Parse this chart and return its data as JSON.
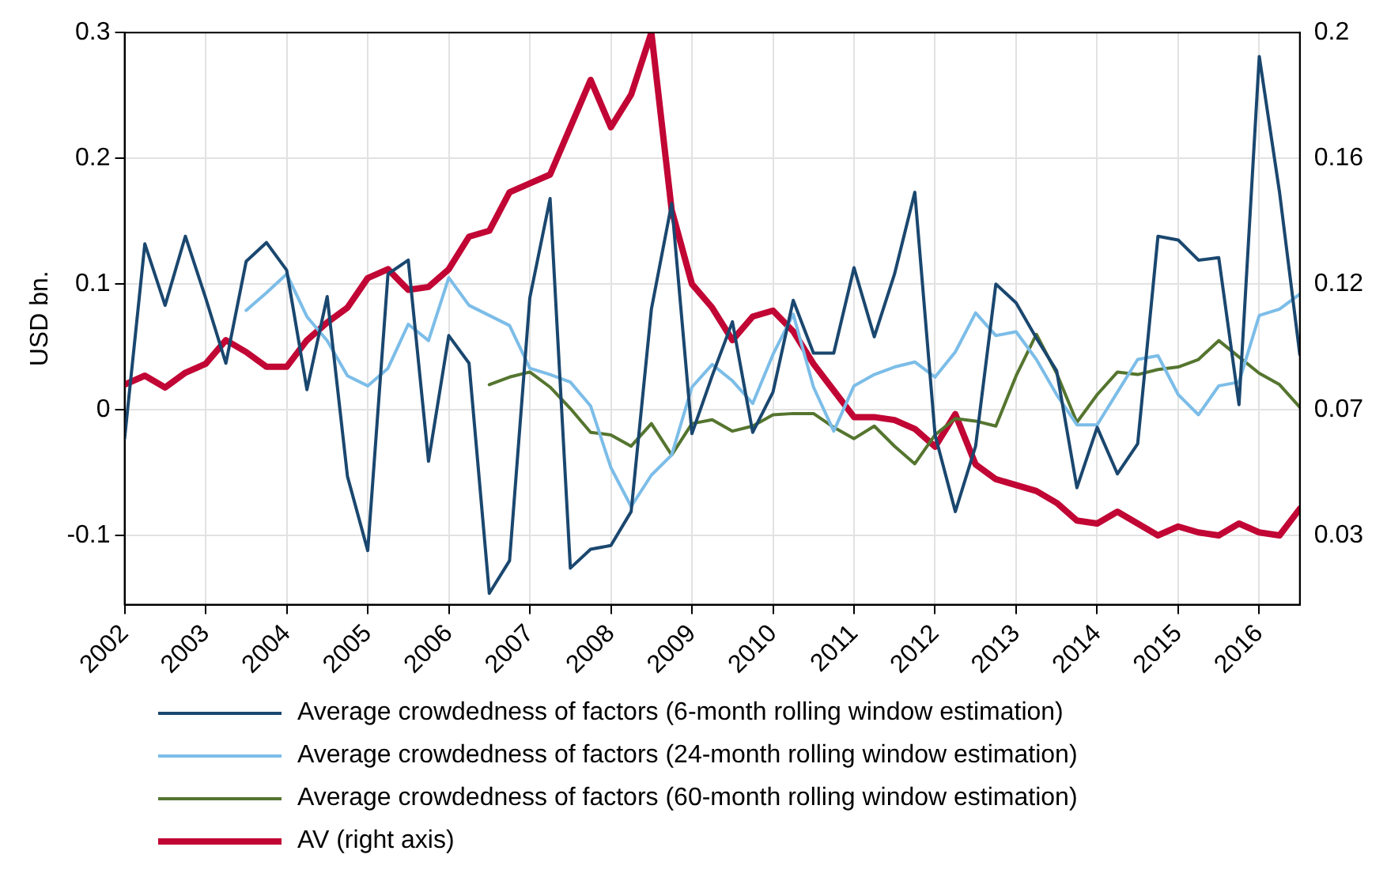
{
  "chart_data": {
    "type": "line",
    "ylabel": "USD bn.",
    "x": [
      2002,
      2002.25,
      2002.5,
      2002.75,
      2003,
      2003.25,
      2003.5,
      2003.75,
      2004,
      2004.25,
      2004.5,
      2004.75,
      2005,
      2005.25,
      2005.5,
      2005.75,
      2006,
      2006.25,
      2006.5,
      2006.75,
      2007,
      2007.25,
      2007.5,
      2007.75,
      2008,
      2008.25,
      2008.5,
      2008.75,
      2009,
      2009.25,
      2009.5,
      2009.75,
      2010,
      2010.25,
      2010.5,
      2010.75,
      2011,
      2011.25,
      2011.5,
      2011.75,
      2012,
      2012.25,
      2012.5,
      2012.75,
      2013,
      2013.25,
      2013.5,
      2013.75,
      2014,
      2014.25,
      2014.5,
      2014.75,
      2015,
      2015.25,
      2015.5,
      2015.75,
      2016,
      2016.25,
      2016.5
    ],
    "series": [
      {
        "name": "Average crowdedness of factors (6-month rolling window estimation)",
        "color": "#1a476f",
        "values": [
          -0.023,
          0.132,
          0.083,
          0.138,
          0.089,
          0.037,
          0.118,
          0.133,
          0.111,
          0.016,
          0.09,
          -0.053,
          -0.112,
          0.108,
          0.119,
          -0.041,
          0.059,
          0.037,
          -0.146,
          -0.12,
          0.089,
          0.168,
          -0.126,
          -0.111,
          -0.108,
          -0.081,
          0.08,
          0.164,
          -0.019,
          0.027,
          0.07,
          -0.018,
          0.014,
          0.087,
          0.045,
          0.045,
          0.113,
          0.058,
          0.108,
          0.173,
          -0.02,
          -0.081,
          -0.029,
          0.1,
          0.085,
          0.057,
          0.031,
          -0.062,
          -0.014,
          -0.051,
          -0.027,
          0.138,
          0.135,
          0.119,
          0.121,
          0.004,
          0.281,
          0.173,
          0.044
        ]
      },
      {
        "name": "Average crowdedness of factors (24-month rolling window estimation)",
        "color": "#7cbde8",
        "values": [
          null,
          null,
          null,
          null,
          null,
          null,
          0.079,
          0.093,
          0.108,
          0.074,
          0.055,
          0.027,
          0.019,
          0.033,
          0.068,
          0.055,
          0.105,
          0.083,
          0.075,
          0.067,
          0.033,
          0.028,
          0.022,
          0.003,
          -0.046,
          -0.077,
          -0.052,
          -0.036,
          0.018,
          0.036,
          0.023,
          0.005,
          0.044,
          0.076,
          0.018,
          -0.017,
          0.019,
          0.028,
          0.034,
          0.038,
          0.026,
          0.046,
          0.077,
          0.059,
          0.062,
          0.04,
          0.012,
          -0.012,
          -0.012,
          0.014,
          0.04,
          0.043,
          0.012,
          -0.004,
          0.019,
          0.022,
          0.075,
          0.08,
          0.092
        ]
      },
      {
        "name": "Average crowdedness of factors (60-month rolling window estimation)",
        "color": "#55752f",
        "values": [
          null,
          null,
          null,
          null,
          null,
          null,
          null,
          null,
          null,
          null,
          null,
          null,
          null,
          null,
          null,
          null,
          null,
          null,
          0.02,
          0.026,
          0.03,
          0.018,
          0.001,
          -0.018,
          -0.02,
          -0.029,
          -0.011,
          -0.036,
          -0.011,
          -0.008,
          -0.017,
          -0.013,
          -0.004,
          -0.003,
          -0.003,
          -0.014,
          -0.023,
          -0.013,
          -0.029,
          -0.043,
          -0.02,
          -0.007,
          -0.009,
          -0.013,
          0.027,
          0.06,
          0.029,
          -0.01,
          0.012,
          0.03,
          0.028,
          0.032,
          0.034,
          0.04,
          0.055,
          0.042,
          0.029,
          0.02,
          0.002
        ]
      },
      {
        "name": "AV (right axis)",
        "color": "#c10534",
        "axis": "y2",
        "values": [
          0.081,
          0.084,
          0.08,
          0.085,
          0.088,
          0.096,
          0.092,
          0.087,
          0.087,
          0.096,
          0.102,
          0.107,
          0.117,
          0.12,
          0.113,
          0.114,
          0.12,
          0.131,
          0.133,
          0.146,
          0.149,
          0.152,
          0.168,
          0.184,
          0.168,
          0.179,
          0.2,
          0.14,
          0.115,
          0.107,
          0.096,
          0.104,
          0.106,
          0.099,
          0.088,
          0.079,
          0.07,
          0.07,
          0.069,
          0.066,
          0.06,
          0.071,
          0.054,
          0.049,
          0.047,
          0.045,
          0.041,
          0.035,
          0.034,
          0.038,
          0.034,
          0.03,
          0.033,
          0.031,
          0.03,
          0.034,
          0.031,
          0.03,
          0.039
        ]
      }
    ],
    "xlim": [
      2002,
      2016.5
    ],
    "xticks": [
      2002,
      2003,
      2004,
      2005,
      2006,
      2007,
      2008,
      2009,
      2010,
      2011,
      2012,
      2013,
      2014,
      2015,
      2016
    ],
    "ylim": [
      -0.155,
      0.3
    ],
    "yticks": [
      -0.1,
      0,
      0.1,
      0.2,
      0.3
    ],
    "y2lim": [
      0.0066,
      0.2
    ],
    "y2ticks": [
      {
        "value": 0.03,
        "label": "0.03"
      },
      {
        "value": 0.0725,
        "label": "0.07"
      },
      {
        "value": 0.115,
        "label": "0.12"
      },
      {
        "value": 0.1575,
        "label": "0.16"
      },
      0.2
    ],
    "grid": true,
    "legend": "bottom",
    "marker": "none",
    "line_style": "solid"
  }
}
